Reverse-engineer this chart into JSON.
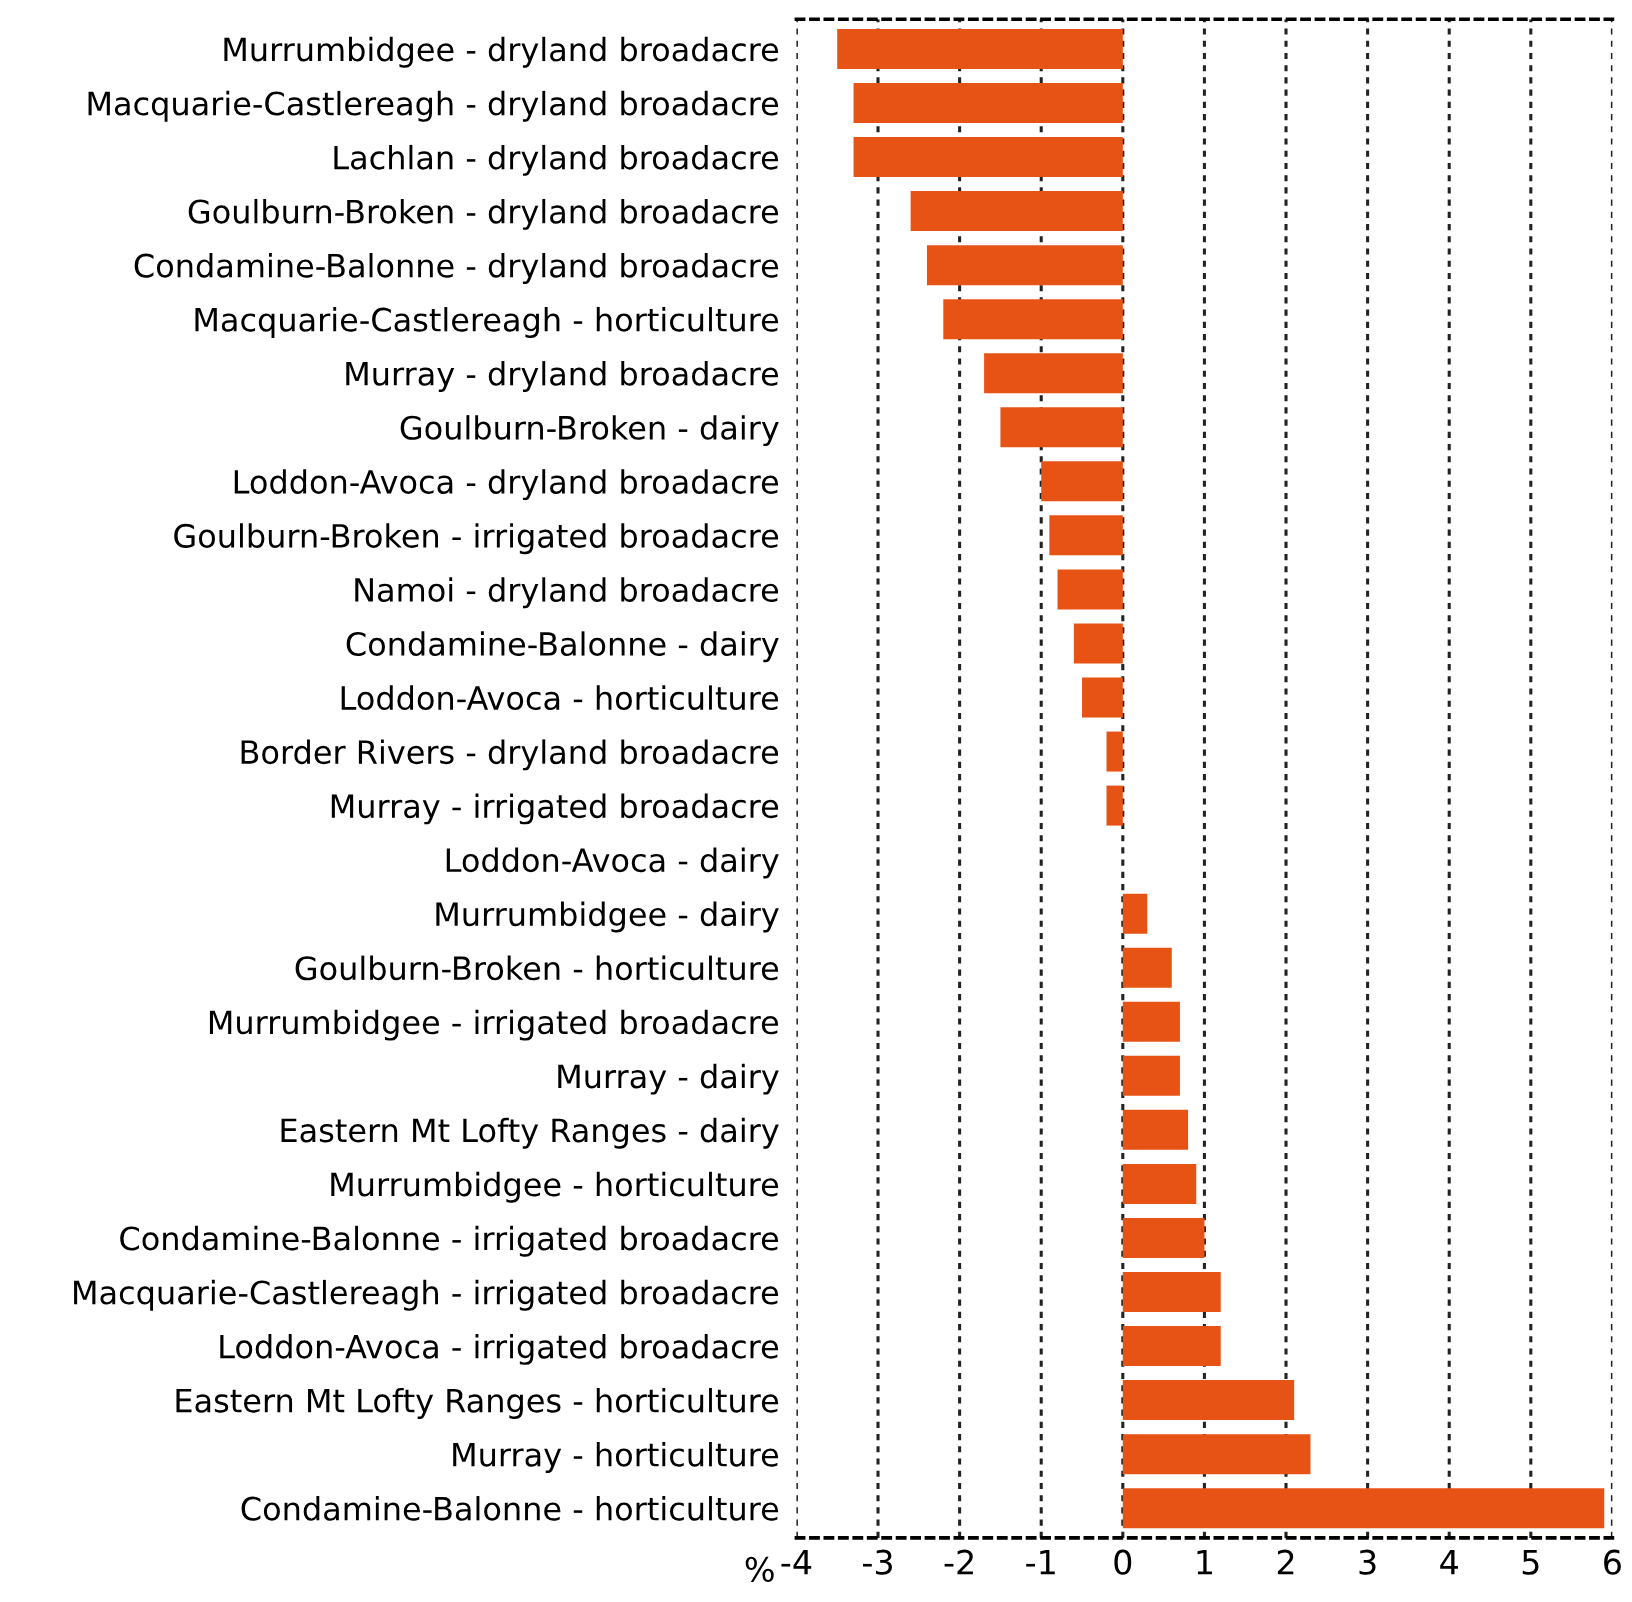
{
  "chart_data": {
    "type": "bar",
    "orientation": "horizontal",
    "xlabel": "%",
    "categories": [
      "Murrumbidgee - dryland broadacre",
      "Macquarie-Castlereagh - dryland broadacre",
      "Lachlan - dryland broadacre",
      "Goulburn-Broken - dryland broadacre",
      "Condamine-Balonne - dryland broadacre",
      "Macquarie-Castlereagh - horticulture",
      "Murray - dryland broadacre",
      "Goulburn-Broken - dairy",
      "Loddon-Avoca - dryland broadacre",
      "Goulburn-Broken - irrigated broadacre",
      "Namoi - dryland broadacre",
      "Condamine-Balonne - dairy",
      "Loddon-Avoca - horticulture",
      "Border Rivers - dryland broadacre",
      "Murray - irrigated broadacre",
      "Loddon-Avoca - dairy",
      "Murrumbidgee - dairy",
      "Goulburn-Broken - horticulture",
      "Murrumbidgee - irrigated broadacre",
      "Murray - dairy",
      "Eastern Mt Lofty Ranges - dairy",
      "Murrumbidgee - horticulture",
      "Condamine-Balonne - irrigated broadacre",
      "Macquarie-Castlereagh - irrigated broadacre",
      "Loddon-Avoca - irrigated broadacre",
      "Eastern Mt Lofty Ranges - horticulture",
      "Murray - horticulture",
      "Condamine-Balonne - horticulture"
    ],
    "values": [
      -3.5,
      -3.3,
      -3.3,
      -2.6,
      -2.4,
      -2.2,
      -1.7,
      -1.5,
      -1.0,
      -0.9,
      -0.8,
      -0.6,
      -0.5,
      -0.2,
      -0.2,
      0,
      0.3,
      0.6,
      0.7,
      0.7,
      0.8,
      0.9,
      1.0,
      1.2,
      1.2,
      2.1,
      2.3,
      5.9
    ],
    "color": "#e75315",
    "xlim": [
      -4,
      6
    ],
    "xticks": [
      -4,
      -3,
      -2,
      -1,
      0,
      1,
      2,
      3,
      4,
      5,
      6
    ],
    "grid": "x",
    "legend": false
  }
}
